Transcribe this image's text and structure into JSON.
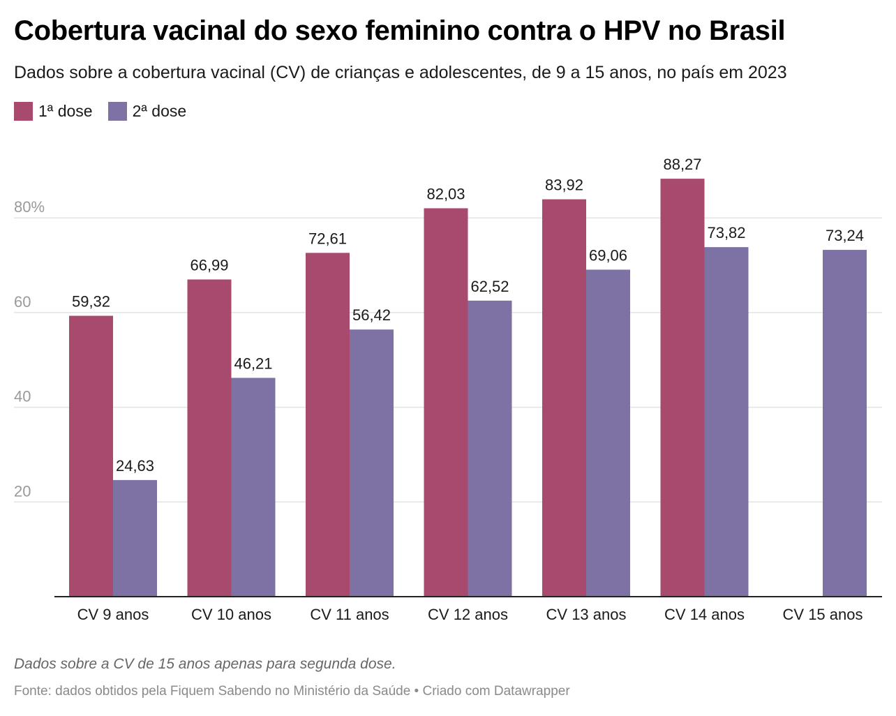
{
  "header": {
    "title": "Cobertura vacinal do sexo feminino contra o HPV no Brasil",
    "subtitle": "Dados sobre a cobertura vacinal (CV) de crianças e adolescentes, de 9 a 15 anos, no país em 2023"
  },
  "footer": {
    "note": "Dados sobre a CV de 15 anos apenas para segunda dose.",
    "source": "Fonte: dados obtidos pela Fiquem Sabendo no Ministério da Saúde • Criado com Datawrapper"
  },
  "colors": {
    "dose1": "#a84a6e",
    "dose2": "#7e72a4",
    "grid": "#e3e3e3",
    "axis": "#222222",
    "tick_label": "#9a9a9a"
  },
  "chart_data": {
    "type": "bar",
    "title": "Cobertura vacinal do sexo feminino contra o HPV no Brasil",
    "categories": [
      "CV 9 anos",
      "CV 10 anos",
      "CV 11 anos",
      "CV 12 anos",
      "CV 13 anos",
      "CV 14 anos",
      "CV 15 anos"
    ],
    "series": [
      {
        "name": "1ª dose",
        "values": [
          59.32,
          66.99,
          72.61,
          82.03,
          83.92,
          88.27,
          null
        ]
      },
      {
        "name": "2ª dose",
        "values": [
          24.63,
          46.21,
          56.42,
          62.52,
          69.06,
          73.82,
          73.24
        ]
      }
    ],
    "value_labels": [
      [
        "59,32",
        "66,99",
        "72,61",
        "82,03",
        "83,92",
        "88,27",
        null
      ],
      [
        "24,63",
        "46,21",
        "56,42",
        "62,52",
        "69,06",
        "73,82",
        "73,24"
      ]
    ],
    "y_ticks": [
      20,
      40,
      60,
      80
    ],
    "y_tick_labels": [
      "20",
      "40",
      "60",
      "80%"
    ],
    "ylim": [
      0,
      100
    ],
    "grid": true,
    "legend_position": "top-left",
    "xlabel": "",
    "ylabel": ""
  }
}
